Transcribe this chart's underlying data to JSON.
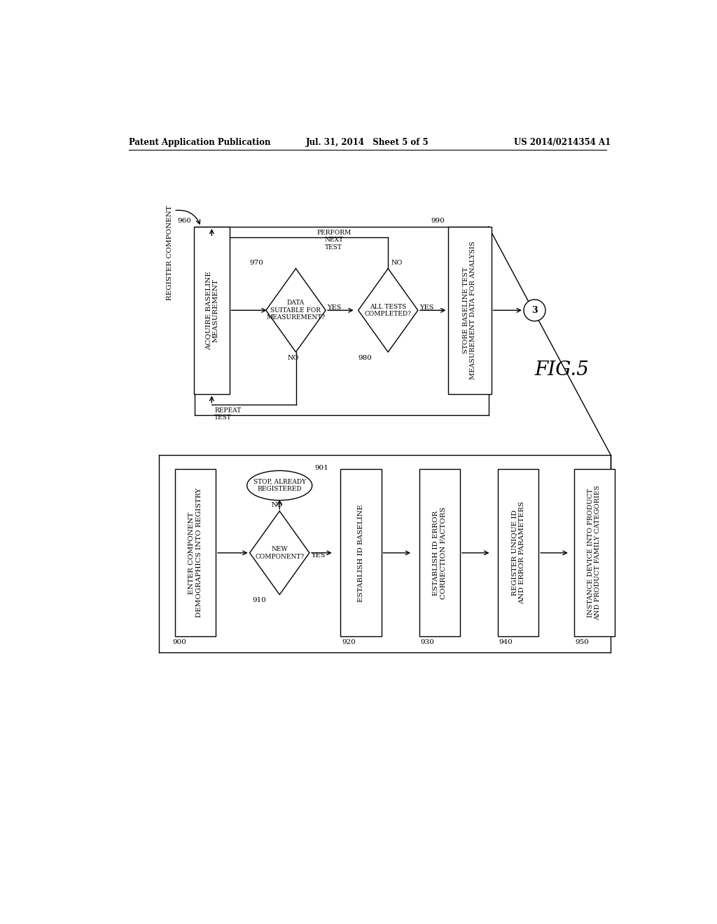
{
  "bg_color": "#ffffff",
  "header_left": "Patent Application Publication",
  "header_mid": "Jul. 31, 2014   Sheet 5 of 5",
  "header_right": "US 2014/0214354 A1",
  "fig_label": "FIG.5",
  "top_label": "REGISTER COMPONENT",
  "box_960_label": "ACQUIRE BASELINE\nMEASUREMENT",
  "box_960_num": "960",
  "diamond_970_label": "DATA\nSUITABLE FOR\nMEASUREMENT?",
  "diamond_970_num": "970",
  "repeat_label": "REPEAT\nTEST",
  "no_label": "NO",
  "yes_label": "YES",
  "diamond_980_label": "ALL TESTS\nCOMPLETED?",
  "diamond_980_num": "980",
  "perform_label": "PERFORM\nNEXT\nTEST",
  "box_990_label": "STORE BASELINE TEST\nMEASUREMENT DATA FOR ANALYSIS",
  "box_990_num": "990",
  "circle_3_label": "3",
  "box_900_label": "ENTER COMPONENT\nDEMOGRAPHICS INTO REGISTRY",
  "box_900_num": "900",
  "diamond_910_label": "NEW\nCOMPONENT?",
  "diamond_910_num": "910",
  "oval_901_label": "STOP, ALREADY\nREGISTERED",
  "oval_901_num": "901",
  "box_920_label": "ESTABLISH ID BASELINE",
  "box_920_num": "920",
  "box_930_label": "ESTABLISH ID ERROR\nCORRECTION FACTORS",
  "box_930_num": "930",
  "box_940_label": "REGISTER UNIQUE ID\nAND ERROR PARAMETERS",
  "box_940_num": "940",
  "box_950_label": "INSTANCE DEVICE INTO PRODUCT\nAND PRODUCT FAMILY CATEGORIES",
  "box_950_num": "950"
}
